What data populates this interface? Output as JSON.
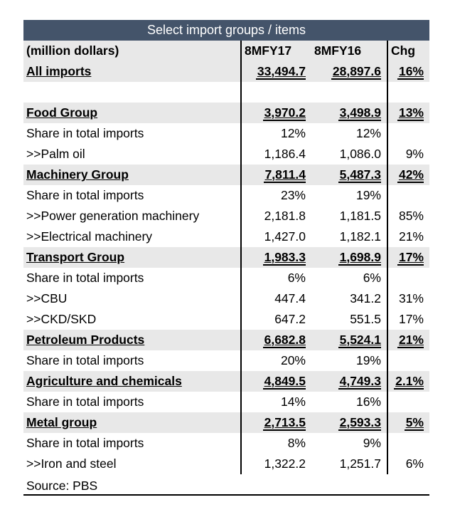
{
  "title": "Select import groups / items",
  "headers": [
    "(million dollars)",
    "8MFY17",
    "8MFY16",
    "Chg"
  ],
  "rows": [
    {
      "label": "All imports",
      "v1": "33,494.7",
      "v2": "28,897.6",
      "chg": "16%",
      "kind": "group"
    },
    {
      "label": "",
      "v1": "",
      "v2": "",
      "chg": "",
      "kind": "blank"
    },
    {
      "label": "Food Group",
      "v1": "3,970.2",
      "v2": "3,498.9",
      "chg": "13%",
      "kind": "group"
    },
    {
      "label": "Share in total imports",
      "v1": "12%",
      "v2": "12%",
      "chg": "",
      "kind": "item"
    },
    {
      "label": ">>Palm oil",
      "v1": "1,186.4",
      "v2": "1,086.0",
      "chg": "9%",
      "kind": "item"
    },
    {
      "label": "Machinery Group",
      "v1": "7,811.4",
      "v2": "5,487.3",
      "chg": "42%",
      "kind": "group"
    },
    {
      "label": "Share in total imports",
      "v1": "23%",
      "v2": "19%",
      "chg": "",
      "kind": "item"
    },
    {
      "label": ">>Power generation machinery",
      "v1": "2,181.8",
      "v2": "1,181.5",
      "chg": "85%",
      "kind": "item"
    },
    {
      "label": ">>Electrical machinery",
      "v1": "1,427.0",
      "v2": "1,182.1",
      "chg": "21%",
      "kind": "item"
    },
    {
      "label": "Transport Group",
      "v1": "1,983.3",
      "v2": "1,698.9",
      "chg": "17%",
      "kind": "group"
    },
    {
      "label": "Share in total imports",
      "v1": "6%",
      "v2": "6%",
      "chg": "",
      "kind": "item"
    },
    {
      "label": ">>CBU",
      "v1": "447.4",
      "v2": "341.2",
      "chg": "31%",
      "kind": "item"
    },
    {
      "label": ">>CKD/SKD",
      "v1": "647.2",
      "v2": "551.5",
      "chg": "17%",
      "kind": "item"
    },
    {
      "label": "Petroleum Products",
      "v1": "6,682.8",
      "v2": "5,524.1",
      "chg": "21%",
      "kind": "group"
    },
    {
      "label": "Share in total imports",
      "v1": "20%",
      "v2": "19%",
      "chg": "",
      "kind": "item"
    },
    {
      "label": "Agriculture and chemicals",
      "v1": "4,849.5",
      "v2": "4,749.3",
      "chg": "2.1%",
      "kind": "group"
    },
    {
      "label": "Share in total imports",
      "v1": "14%",
      "v2": "16%",
      "chg": "",
      "kind": "item"
    },
    {
      "label": "Metal group",
      "v1": "2,713.5",
      "v2": "2,593.3",
      "chg": "5%",
      "kind": "group"
    },
    {
      "label": "Share in total imports",
      "v1": "8%",
      "v2": "9%",
      "chg": "",
      "kind": "item"
    },
    {
      "label": ">>Iron and steel",
      "v1": "1,322.2",
      "v2": "1,251.7",
      "chg": "6%",
      "kind": "item"
    }
  ],
  "source": "Source: PBS"
}
